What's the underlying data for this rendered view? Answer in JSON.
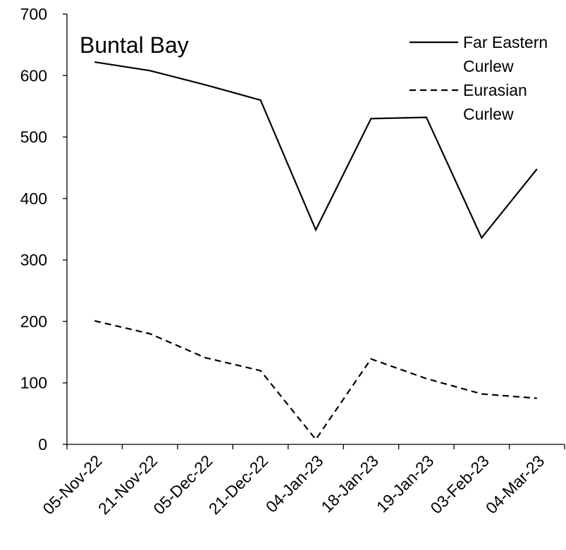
{
  "chart_data": {
    "type": "line",
    "title": "Buntal Bay",
    "xlabel": "",
    "ylabel": "",
    "categories": [
      "05-Nov-22",
      "21-Nov-22",
      "05-Dec-22",
      "21-Dec-22",
      "04-Jan-23",
      "18-Jan-23",
      "19-Jan-23",
      "03-Feb-23",
      "04-Mar-23"
    ],
    "ylim": [
      0,
      700
    ],
    "yticks": [
      0,
      100,
      200,
      300,
      400,
      500,
      600,
      700
    ],
    "grid": false,
    "legend_position": "top-right",
    "series": [
      {
        "name": "Far Eastern Curlew",
        "name_lines": [
          "Far Eastern",
          "Curlew"
        ],
        "line_style": "solid",
        "color": "#000000",
        "values": [
          622,
          608,
          585,
          560,
          349,
          530,
          532,
          336,
          448
        ]
      },
      {
        "name": "Eurasian Curlew",
        "name_lines": [
          "Eurasian",
          "Curlew"
        ],
        "line_style": "dashed",
        "color": "#000000",
        "values": [
          201,
          180,
          141,
          120,
          8,
          139,
          107,
          82,
          75
        ]
      }
    ]
  }
}
